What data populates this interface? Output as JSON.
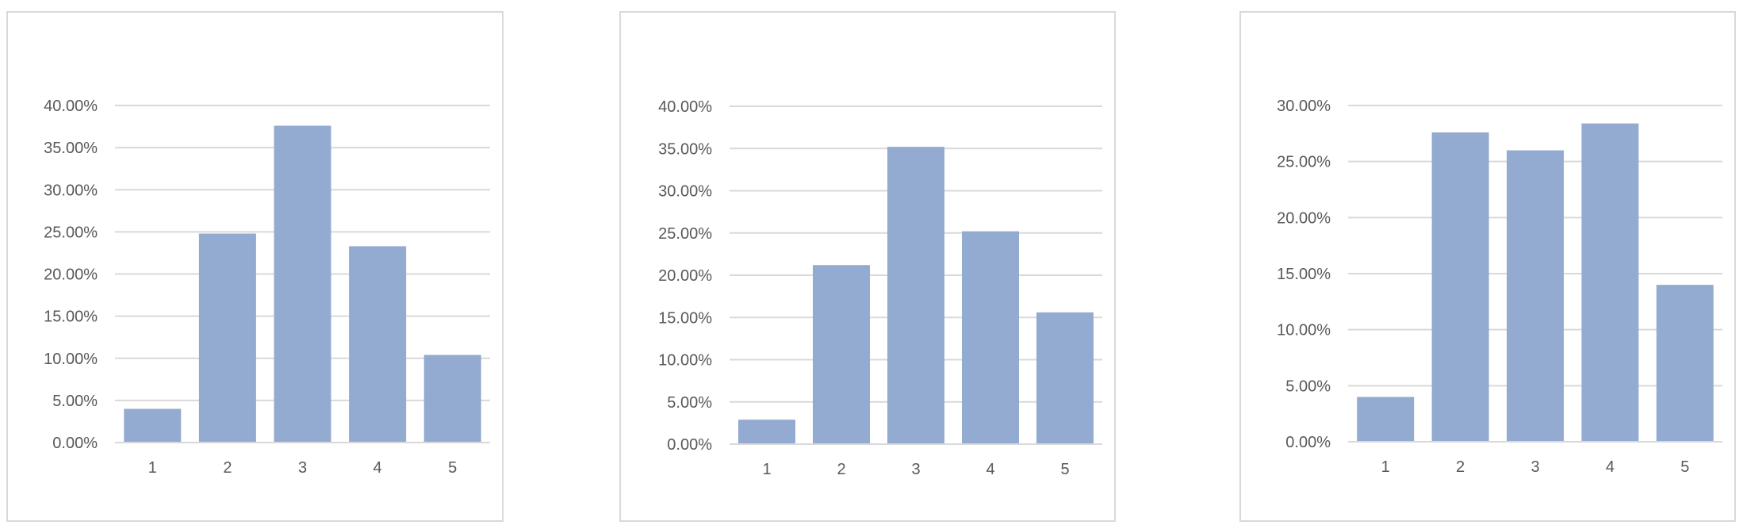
{
  "colors": {
    "bar": "#94abd1",
    "grid": "#d9d9d9",
    "label": "#595959"
  },
  "chart_data": [
    {
      "type": "bar",
      "categories": [
        "1",
        "2",
        "3",
        "4",
        "5"
      ],
      "values": [
        4.0,
        24.8,
        37.6,
        23.3,
        10.4
      ],
      "ylim": [
        0,
        40
      ],
      "yticks": [
        0,
        5,
        10,
        15,
        20,
        25,
        30,
        35,
        40
      ],
      "ytick_labels": [
        "0.00%",
        "5.00%",
        "10.00%",
        "15.00%",
        "20.00%",
        "25.00%",
        "30.00%",
        "35.00%",
        "40.00%"
      ],
      "grid": true,
      "legend": "none"
    },
    {
      "type": "bar",
      "categories": [
        "1",
        "2",
        "3",
        "4",
        "5"
      ],
      "values": [
        2.9,
        21.2,
        35.2,
        25.2,
        15.6
      ],
      "ylim": [
        0,
        40
      ],
      "yticks": [
        0,
        5,
        10,
        15,
        20,
        25,
        30,
        35,
        40
      ],
      "ytick_labels": [
        "0.00%",
        "5.00%",
        "10.00%",
        "15.00%",
        "20.00%",
        "25.00%",
        "30.00%",
        "35.00%",
        "40.00%"
      ],
      "grid": true,
      "legend": "none"
    },
    {
      "type": "bar",
      "categories": [
        "1",
        "2",
        "3",
        "4",
        "5"
      ],
      "values": [
        4.0,
        27.6,
        26.0,
        28.4,
        14.0
      ],
      "ylim": [
        0,
        30
      ],
      "yticks": [
        0,
        5,
        10,
        15,
        20,
        25,
        30
      ],
      "ytick_labels": [
        "0.00%",
        "5.00%",
        "10.00%",
        "15.00%",
        "20.00%",
        "25.00%",
        "30.00%"
      ],
      "grid": true,
      "legend": "none"
    }
  ]
}
